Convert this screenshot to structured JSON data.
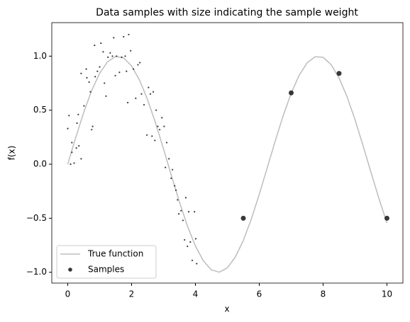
{
  "chart_data": {
    "type": "line",
    "title": "Data samples with size indicating the sample weight",
    "xlabel": "x",
    "ylabel": "f(x)",
    "xlim": [
      -0.5,
      10.5
    ],
    "ylim": [
      -1.1,
      1.31
    ],
    "xticks": [
      0,
      2,
      4,
      6,
      8,
      10
    ],
    "yticks": [
      {
        "value": -1,
        "label": "−1.0"
      },
      {
        "value": -0.5,
        "label": "−0.5"
      },
      {
        "value": 0,
        "label": "0.0"
      },
      0.5,
      {
        "value": 1,
        "label": "1.0"
      }
    ],
    "legend": "lower left",
    "series": [
      {
        "name": "True function",
        "type": "line",
        "color": "#bdbdbd",
        "x": [
          0,
          0.25,
          0.5,
          0.75,
          1,
          1.25,
          1.5,
          1.75,
          2,
          2.25,
          2.5,
          2.75,
          3,
          3.25,
          3.5,
          3.75,
          4,
          4.25,
          4.5,
          4.75,
          5,
          5.25,
          5.5,
          5.75,
          6,
          6.25,
          6.5,
          6.75,
          7,
          7.25,
          7.5,
          7.75,
          8,
          8.25,
          8.5,
          8.75,
          9,
          9.25,
          9.5,
          9.75,
          10
        ],
        "values": [
          0,
          0.247,
          0.479,
          0.682,
          0.841,
          0.949,
          0.997,
          0.984,
          0.909,
          0.778,
          0.598,
          0.382,
          0.141,
          -0.108,
          -0.351,
          -0.572,
          -0.757,
          -0.895,
          -0.978,
          -0.999,
          -0.959,
          -0.859,
          -0.706,
          -0.508,
          -0.279,
          -0.033,
          0.215,
          0.45,
          0.657,
          0.823,
          0.938,
          0.995,
          0.989,
          0.922,
          0.798,
          0.625,
          0.412,
          0.173,
          -0.075,
          -0.319,
          -0.544
        ]
      },
      {
        "name": "Samples",
        "type": "scatter",
        "color": "#222222",
        "x": [
          0,
          0.04,
          0.13,
          0.13,
          0.09,
          0.2,
          0.27,
          0.29,
          0.33,
          0.35,
          0.42,
          0.42,
          0.51,
          0.58,
          0.6,
          0.67,
          0.71,
          0.75,
          0.78,
          0.84,
          0.86,
          0.93,
          1.0,
          1.04,
          1.11,
          1.15,
          1.2,
          1.26,
          1.33,
          1.4,
          1.44,
          1.49,
          1.53,
          1.62,
          1.69,
          1.75,
          1.8,
          1.84,
          1.91,
          1.97,
          1.88,
          2.06,
          2.13,
          2.2,
          2.26,
          2.31,
          2.39,
          2.48,
          2.53,
          2.59,
          2.64,
          2.68,
          2.73,
          2.77,
          2.82,
          2.88,
          2.95,
          3.02,
          3.06,
          3.1,
          3.17,
          3.24,
          3.28,
          3.35,
          3.39,
          3.44,
          3.48,
          3.55,
          3.61,
          3.66,
          3.7,
          3.75,
          3.79,
          3.84,
          3.9,
          3.97,
          4.01,
          4.04,
          5.5,
          7,
          8.5,
          10
        ],
        "values": [
          0.33,
          0.45,
          0.11,
          0.2,
          0,
          0.01,
          0.15,
          0.38,
          0.46,
          0.17,
          0.05,
          0.84,
          0.54,
          0.88,
          0.8,
          0.76,
          0.67,
          0.32,
          0.35,
          1.1,
          0.81,
          0.86,
          0.9,
          1.12,
          1.04,
          0.75,
          0.63,
          0.99,
          1.03,
          1.0,
          1.17,
          0.82,
          1.0,
          0.85,
          0.99,
          1.18,
          1.0,
          0.86,
          1.2,
          1.05,
          0.57,
          0.88,
          0.61,
          0.92,
          0.94,
          0.65,
          0.55,
          0.27,
          0.71,
          0.65,
          0.26,
          0.67,
          0.22,
          0.5,
          0.35,
          0.32,
          0.43,
          0.35,
          -0.03,
          0.2,
          0.05,
          -0.13,
          -0.05,
          -0.2,
          -0.24,
          -0.33,
          -0.46,
          -0.43,
          -0.52,
          -0.7,
          -0.31,
          -0.76,
          -0.44,
          -0.72,
          -0.89,
          -0.44,
          -0.69,
          -0.92,
          -0.5,
          0.66,
          0.84,
          -0.5
        ],
        "sizes": [
          1,
          1,
          1,
          1,
          1,
          1,
          1,
          1,
          1,
          1,
          1,
          1,
          1,
          1,
          1,
          1,
          1,
          1,
          1,
          1,
          1,
          1,
          1,
          1,
          1,
          1,
          1,
          1,
          1,
          1,
          1,
          1,
          1,
          1,
          1,
          1,
          1,
          1,
          1,
          1,
          1,
          1,
          1,
          1,
          1,
          1,
          1,
          1,
          1,
          1,
          1,
          1,
          1,
          1,
          1,
          1,
          1,
          1,
          1,
          1,
          1,
          1,
          1,
          1,
          1,
          1,
          1,
          1,
          1,
          1,
          1,
          1,
          1,
          1,
          1,
          1,
          1,
          1,
          10,
          10,
          10,
          10
        ]
      }
    ]
  }
}
